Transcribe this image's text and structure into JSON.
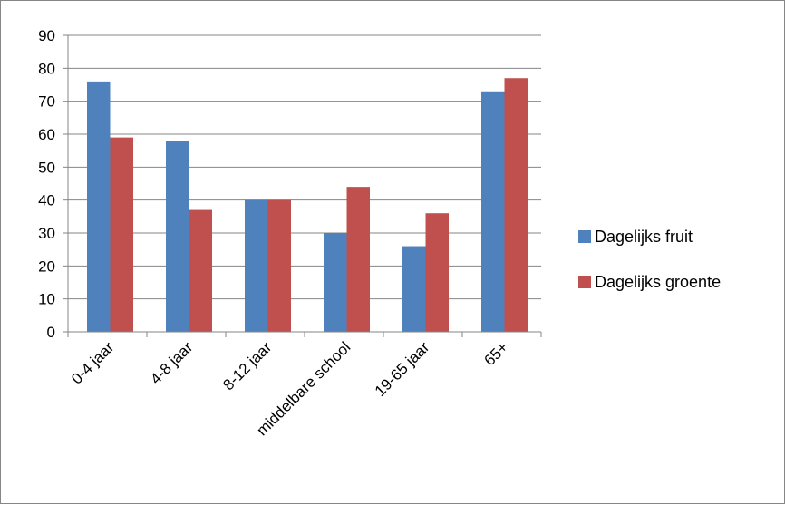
{
  "chart_data": {
    "type": "bar",
    "categories": [
      "0-4 jaar",
      "4-8 jaar",
      "8-12 jaar",
      "middelbare school",
      "19-65 jaar",
      "65+"
    ],
    "series": [
      {
        "name": "Dagelijks fruit",
        "values": [
          76,
          58,
          40,
          30,
          26,
          73
        ],
        "color": "#4F81BD"
      },
      {
        "name": "Dagelijks groente",
        "values": [
          59,
          37,
          40,
          44,
          36,
          77
        ],
        "color": "#C0504D"
      }
    ],
    "yticks": [
      0,
      10,
      20,
      30,
      40,
      50,
      60,
      70,
      80,
      90
    ],
    "ylim": [
      0,
      90
    ],
    "grid": true,
    "legend_position": "right",
    "title": "",
    "xlabel": "",
    "ylabel": ""
  }
}
